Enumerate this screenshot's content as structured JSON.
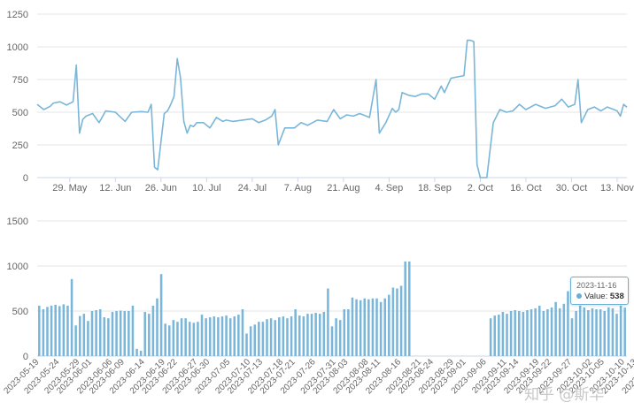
{
  "chart_data": [
    {
      "type": "line",
      "x_tick_labels": [
        "29. May",
        "12. Jun",
        "26. Jun",
        "10. Jul",
        "24. Jul",
        "7. Aug",
        "21. Aug",
        "4. Sep",
        "18. Sep",
        "2. Oct",
        "16. Oct",
        "30. Oct",
        "13. Nov"
      ],
      "y_tick_labels": [
        "0",
        "250",
        "500",
        "750",
        "1000",
        "1250"
      ],
      "ylim": [
        0,
        1250
      ],
      "xlim": [
        "2023-05-19",
        "2023-11-16"
      ],
      "grid": true,
      "color": "#7ab6d9",
      "series": [
        {
          "x": [
            "2023-05-19",
            "2023-05-21",
            "2023-05-23",
            "2023-05-24",
            "2023-05-26",
            "2023-05-28",
            "2023-05-30",
            "2023-05-31",
            "2023-06-01",
            "2023-06-02",
            "2023-06-03",
            "2023-06-05",
            "2023-06-07",
            "2023-06-09",
            "2023-06-12",
            "2023-06-15",
            "2023-06-17",
            "2023-06-20",
            "2023-06-22",
            "2023-06-23",
            "2023-06-24",
            "2023-06-25",
            "2023-06-27",
            "2023-06-28",
            "2023-06-29",
            "2023-06-30",
            "2023-07-01",
            "2023-07-02",
            "2023-07-03",
            "2023-07-04",
            "2023-07-05",
            "2023-07-06",
            "2023-07-07",
            "2023-07-09",
            "2023-07-11",
            "2023-07-13",
            "2023-07-15",
            "2023-07-16",
            "2023-07-18",
            "2023-07-21",
            "2023-07-24",
            "2023-07-26",
            "2023-07-28",
            "2023-07-30",
            "2023-07-31",
            "2023-08-01",
            "2023-08-03",
            "2023-08-06",
            "2023-08-08",
            "2023-08-10",
            "2023-08-13",
            "2023-08-16",
            "2023-08-18",
            "2023-08-20",
            "2023-08-22",
            "2023-08-24",
            "2023-08-26",
            "2023-08-29",
            "2023-08-31",
            "2023-09-01",
            "2023-09-02",
            "2023-09-03",
            "2023-09-05",
            "2023-09-06",
            "2023-09-07",
            "2023-09-08",
            "2023-09-10",
            "2023-09-12",
            "2023-09-14",
            "2023-09-16",
            "2023-09-18",
            "2023-09-20",
            "2023-09-21",
            "2023-09-23",
            "2023-09-25",
            "2023-09-27",
            "2023-09-28",
            "2023-09-29",
            "2023-09-30",
            "2023-10-01",
            "2023-10-02",
            "2023-10-04",
            "2023-10-06",
            "2023-10-08",
            "2023-10-10",
            "2023-10-12",
            "2023-10-14",
            "2023-10-16",
            "2023-10-19",
            "2023-10-22",
            "2023-10-25",
            "2023-10-27",
            "2023-10-29",
            "2023-10-31",
            "2023-11-01",
            "2023-11-02",
            "2023-11-04",
            "2023-11-06",
            "2023-11-08",
            "2023-11-10",
            "2023-11-12",
            "2023-11-13",
            "2023-11-14",
            "2023-11-15",
            "2023-11-16"
          ],
          "values": [
            560,
            520,
            545,
            570,
            580,
            555,
            580,
            860,
            340,
            445,
            470,
            490,
            420,
            510,
            500,
            430,
            500,
            505,
            500,
            560,
            80,
            60,
            490,
            510,
            560,
            620,
            910,
            760,
            430,
            340,
            400,
            390,
            420,
            420,
            380,
            460,
            430,
            440,
            430,
            440,
            450,
            420,
            440,
            470,
            520,
            250,
            380,
            380,
            420,
            400,
            440,
            430,
            520,
            450,
            480,
            470,
            490,
            460,
            750,
            340,
            380,
            420,
            530,
            500,
            520,
            650,
            630,
            620,
            640,
            640,
            600,
            700,
            650,
            760,
            770,
            780,
            1050,
            1050,
            1040,
            100,
            0,
            0,
            420,
            520,
            500,
            510,
            560,
            520,
            560,
            530,
            550,
            600,
            540,
            560,
            750,
            420,
            520,
            540,
            510,
            540,
            520,
            510,
            470,
            560,
            538
          ]
        }
      ]
    },
    {
      "type": "bar",
      "x_tick_labels": [
        "2023-05-19",
        "2023-05-24",
        "2023-05-29",
        "2023-06-01",
        "2023-06-06",
        "2023-06-09",
        "2023-06-14",
        "2023-06-19",
        "2023-06-22",
        "2023-06-27",
        "2023-06-30",
        "2023-07-05",
        "2023-07-10",
        "2023-07-13",
        "2023-07-18",
        "2023-07-21",
        "2023-07-26",
        "2023-07-31",
        "2023-08-03",
        "2023-08-08",
        "2023-08-11",
        "2023-08-16",
        "2023-08-21",
        "2023-08-24",
        "2023-08-29",
        "2023-09-01",
        "2023-09-06",
        "2023-09-11",
        "2023-09-14",
        "2023-09-19",
        "2023-09-22",
        "2023-09-27",
        "2023-10-02",
        "2023-10-05",
        "2023-10-10",
        "2023-10-13",
        "2023-10-18",
        "2023-10-23",
        "2023-10-26",
        "2023-10-31",
        "2023-11-03",
        "2023-11-08",
        "2023-11-13",
        "2023-11-16"
      ],
      "y_tick_labels": [
        "0",
        "500",
        "1000",
        "1500"
      ],
      "ylim": [
        0,
        1500
      ],
      "grid": true,
      "color": "#7ab6d9",
      "series": [
        {
          "start": "2023-05-19",
          "values": [
            560,
            520,
            545,
            560,
            570,
            555,
            575,
            560,
            855,
            340,
            445,
            470,
            390,
            500,
            510,
            520,
            430,
            420,
            490,
            500,
            505,
            500,
            500,
            560,
            80,
            60,
            490,
            470,
            560,
            640,
            910,
            360,
            340,
            400,
            380,
            420,
            420,
            380,
            370,
            380,
            460,
            420,
            430,
            440,
            430,
            440,
            450,
            420,
            440,
            460,
            520,
            250,
            330,
            350,
            380,
            380,
            410,
            420,
            400,
            430,
            440,
            420,
            440,
            520,
            450,
            440,
            470,
            470,
            480,
            470,
            490,
            750,
            330,
            420,
            400,
            520,
            520,
            650,
            630,
            620,
            640,
            630,
            640,
            640,
            600,
            640,
            680,
            760,
            750,
            780,
            1050,
            1050,
            0,
            0,
            0,
            0,
            0,
            0,
            0,
            0,
            0,
            0,
            0,
            0,
            0,
            0,
            0,
            0,
            0,
            0,
            0,
            420,
            450,
            460,
            490,
            470,
            500,
            510,
            500,
            490,
            510,
            520,
            530,
            560,
            500,
            520,
            540,
            600,
            530,
            580,
            720,
            420,
            500,
            560,
            540,
            510,
            530,
            520,
            520,
            500,
            540,
            530,
            470,
            560,
            538
          ]
        }
      ],
      "tooltip": {
        "date": "2023-11-16",
        "label": "Value:",
        "value": "538"
      }
    }
  ],
  "watermark": "知乎 @斯华"
}
